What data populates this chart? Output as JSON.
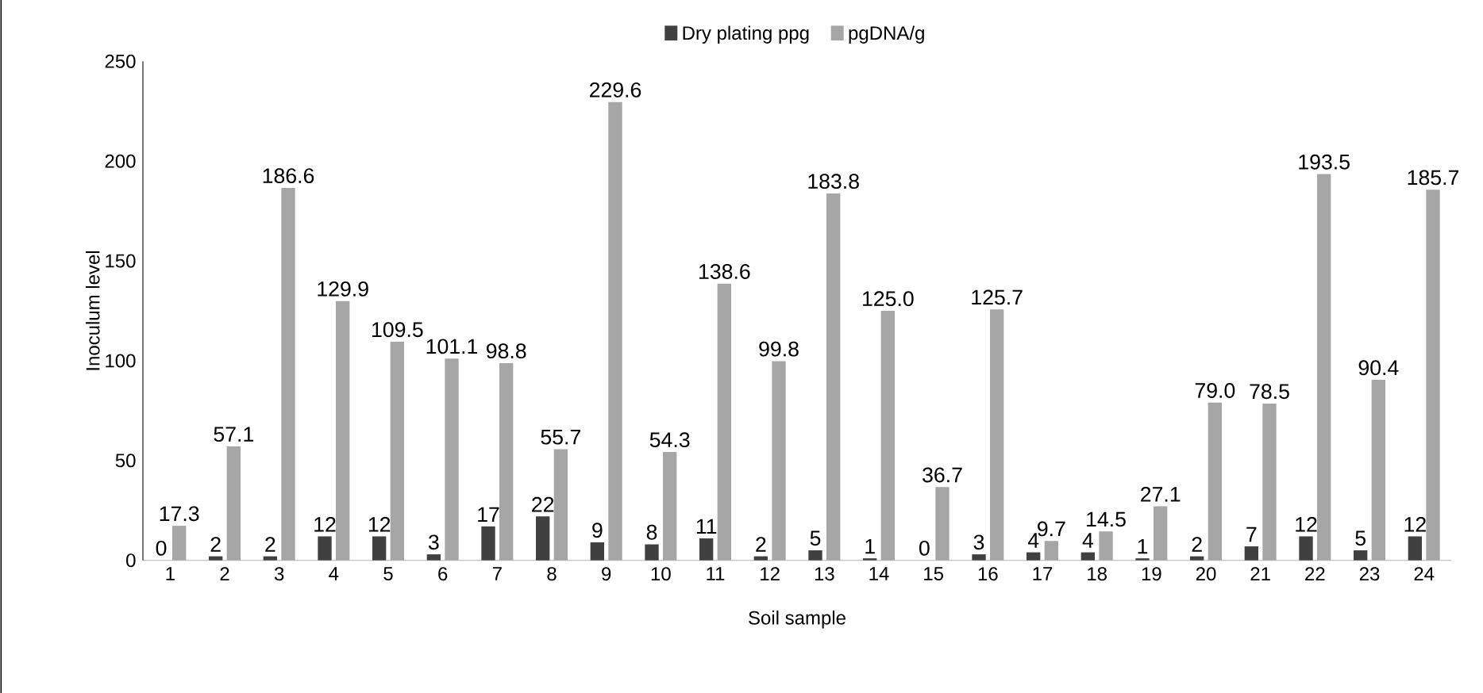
{
  "chart_data": {
    "type": "bar",
    "xlabel": "Soil sample",
    "ylabel": "Inoculum level",
    "categories": [
      "1",
      "2",
      "3",
      "4",
      "5",
      "6",
      "7",
      "8",
      "9",
      "10",
      "11",
      "12",
      "13",
      "14",
      "15",
      "16",
      "17",
      "18",
      "19",
      "20",
      "21",
      "22",
      "23",
      "24"
    ],
    "series": [
      {
        "name": "Dry plating ppg",
        "color": "#404040",
        "values": [
          0,
          2,
          2,
          12,
          12,
          3,
          17,
          22,
          9,
          8,
          11,
          2,
          5,
          1,
          0,
          3,
          4,
          4,
          1,
          2,
          7,
          12,
          5,
          12
        ],
        "value_labels": [
          "0",
          "2",
          "2",
          "12",
          "12",
          "3",
          "17",
          "22",
          "9",
          "8",
          "11",
          "2",
          "5",
          "1",
          "0",
          "3",
          "4",
          "4",
          "1",
          "2",
          "7",
          "12",
          "5",
          "12"
        ]
      },
      {
        "name": "pgDNA/g",
        "color": "#a6a6a6",
        "values": [
          17.3,
          57.1,
          186.6,
          129.9,
          109.5,
          101.1,
          98.8,
          55.7,
          229.6,
          54.3,
          138.6,
          99.8,
          183.8,
          125.0,
          36.7,
          125.7,
          9.7,
          14.5,
          27.1,
          79.0,
          78.5,
          193.5,
          90.4,
          185.7
        ],
        "value_labels": [
          "17.3",
          "57.1",
          "186.6",
          "129.9",
          "109.5",
          "101.1",
          "98.8",
          "55.7",
          "229.6",
          "54.3",
          "138.6",
          "99.8",
          "183.8",
          "125.0",
          "36.7",
          "125.7",
          "9.7",
          "14.5",
          "27.1",
          "79.0",
          "78.5",
          "193.5",
          "90.4",
          "185.7"
        ]
      }
    ],
    "ylim": [
      0,
      250
    ],
    "yticks": [
      0,
      50,
      100,
      150,
      200,
      250
    ],
    "grid": false,
    "legend": "top"
  }
}
